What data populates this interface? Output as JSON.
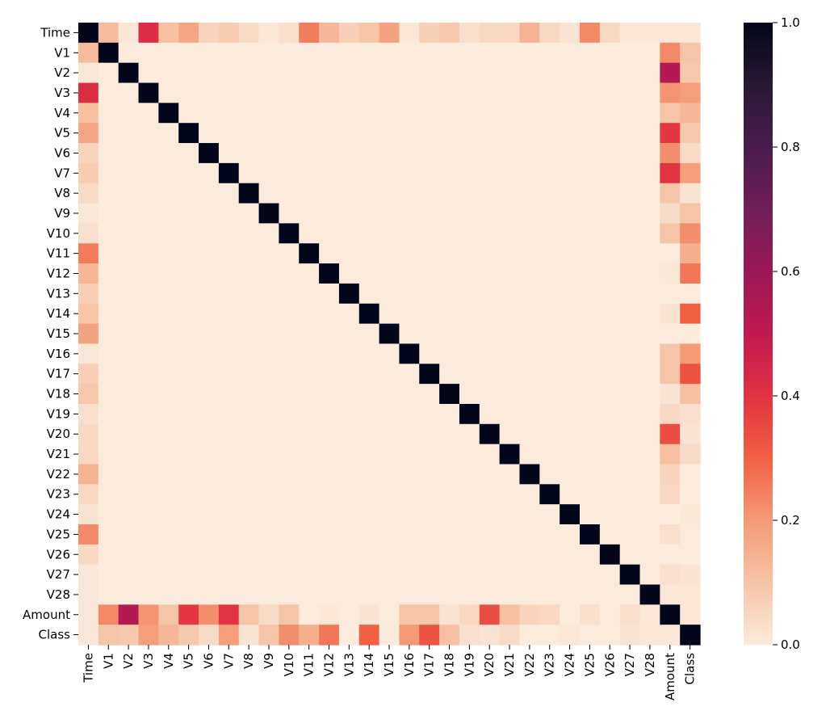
{
  "chart_data": {
    "type": "heatmap",
    "title": "",
    "xlabel": "",
    "ylabel": "",
    "labels": [
      "Time",
      "V1",
      "V2",
      "V3",
      "V4",
      "V5",
      "V6",
      "V7",
      "V8",
      "V9",
      "V10",
      "V11",
      "V12",
      "V13",
      "V14",
      "V15",
      "V16",
      "V17",
      "V18",
      "V19",
      "V20",
      "V21",
      "V22",
      "V23",
      "V24",
      "V25",
      "V26",
      "V27",
      "V28",
      "Amount",
      "Class"
    ],
    "time_row": [
      1.0,
      0.12,
      0.01,
      0.42,
      0.11,
      0.17,
      0.06,
      0.08,
      0.04,
      0.01,
      0.03,
      0.25,
      0.13,
      0.07,
      0.1,
      0.18,
      0.01,
      0.07,
      0.09,
      0.03,
      0.05,
      0.05,
      0.14,
      0.05,
      0.02,
      0.23,
      0.05,
      0.01,
      0.01,
      0.01,
      0.01
    ],
    "amount_row": [
      0.01,
      0.23,
      0.53,
      0.21,
      0.1,
      0.39,
      0.22,
      0.4,
      0.1,
      0.04,
      0.1,
      0.0,
      0.01,
      0.0,
      0.02,
      0.0,
      0.1,
      0.1,
      0.02,
      0.05,
      0.34,
      0.11,
      0.06,
      0.05,
      0.0,
      0.03,
      0.0,
      0.03,
      0.01,
      1.0,
      0.01
    ],
    "class_row": [
      0.01,
      0.1,
      0.09,
      0.19,
      0.13,
      0.09,
      0.04,
      0.19,
      0.02,
      0.1,
      0.22,
      0.15,
      0.26,
      0.0,
      0.3,
      0.0,
      0.2,
      0.33,
      0.11,
      0.03,
      0.02,
      0.04,
      0.0,
      0.0,
      0.01,
      0.0,
      0.0,
      0.02,
      0.01,
      0.01,
      1.0
    ],
    "vrange": [
      0.0,
      1.0
    ],
    "colormap": "rocket",
    "colorbar_ticks": [
      "0.0",
      "0.2",
      "0.4",
      "0.6",
      "0.8",
      "1.0"
    ],
    "colorbar_tick_values": [
      0.0,
      0.2,
      0.4,
      0.6,
      0.8,
      1.0
    ],
    "colormap_stops": [
      {
        "v": 0.0,
        "c": "#faebdd"
      },
      {
        "v": 0.1,
        "c": "#f6c4a6"
      },
      {
        "v": 0.2,
        "c": "#f49a77"
      },
      {
        "v": 0.3,
        "c": "#f06043"
      },
      {
        "v": 0.4,
        "c": "#e13342"
      },
      {
        "v": 0.5,
        "c": "#c01a50"
      },
      {
        "v": 0.6,
        "c": "#9a1855"
      },
      {
        "v": 0.7,
        "c": "#701f57"
      },
      {
        "v": 0.8,
        "c": "#491d4d"
      },
      {
        "v": 0.9,
        "c": "#281833"
      },
      {
        "v": 1.0,
        "c": "#03051a"
      }
    ]
  }
}
